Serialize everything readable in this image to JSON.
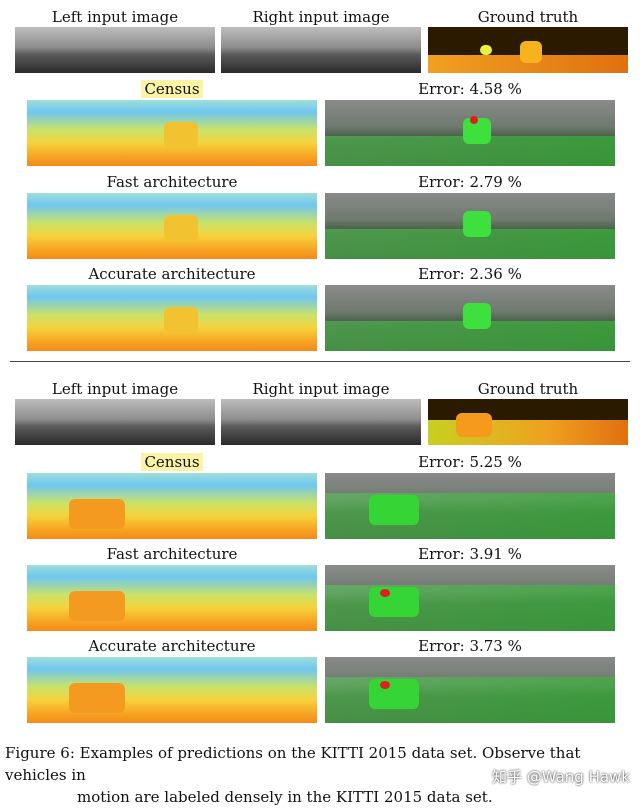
{
  "blocks": [
    {
      "headers": {
        "left": "Left input image",
        "right": "Right input image",
        "gt": "Ground truth"
      },
      "rows": [
        {
          "method": "Census",
          "error": "Error: 4.58 %"
        },
        {
          "method": "Fast architecture",
          "error": "Error: 2.79 %"
        },
        {
          "method": "Accurate architecture",
          "error": "Error: 2.36 %"
        }
      ]
    },
    {
      "headers": {
        "left": "Left input image",
        "right": "Right input image",
        "gt": "Ground truth"
      },
      "rows": [
        {
          "method": "Census",
          "error": "Error: 5.25 %"
        },
        {
          "method": "Fast architecture",
          "error": "Error: 3.91 %"
        },
        {
          "method": "Accurate architecture",
          "error": "Error: 3.73 %"
        }
      ]
    }
  ],
  "caption": {
    "line1": "Figure 6: Examples of predictions on the KITTI 2015 data set. Observe that vehicles in",
    "line2": "motion are labeled densely in the KITTI 2015 data set."
  },
  "watermark": "知乎 @Wang Hawk"
}
